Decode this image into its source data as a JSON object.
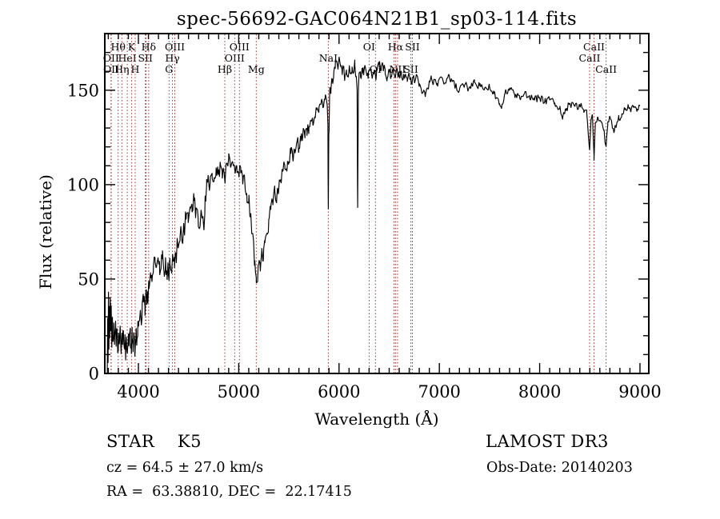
{
  "page": {
    "background": "#ffffff"
  },
  "chart_data": {
    "type": "line",
    "title": "spec-56692-GAC064N21B1_sp03-114.fits",
    "xlabel": "Wavelength (Å)",
    "ylabel": "Flux (relative)",
    "xlim": [
      3665,
      9088
    ],
    "ylim": [
      0,
      180
    ],
    "x_ticks": [
      4000,
      5000,
      6000,
      7000,
      8000,
      9000
    ],
    "x_minor_step": 100,
    "y_ticks": [
      0,
      50,
      100,
      150
    ],
    "y_minor_step": 10,
    "grid": false,
    "legend": "none",
    "colors": {
      "spectrum": "#000000",
      "line_marker": "#9e2f28",
      "text": "#000000",
      "frame": "#000000"
    },
    "spectral_lines": [
      {
        "label": "OII",
        "wavelength": 3727,
        "row": 2
      },
      {
        "label": "OII",
        "wavelength": 3729,
        "row": 3
      },
      {
        "label": "Hθ",
        "wavelength": 3798,
        "row": 1
      },
      {
        "label": "Hη",
        "wavelength": 3835,
        "row": 3
      },
      {
        "label": "HeI",
        "wavelength": 3889,
        "row": 2
      },
      {
        "label": "K",
        "wavelength": 3933,
        "row": 1
      },
      {
        "label": "H",
        "wavelength": 3968,
        "row": 3
      },
      {
        "label": "SII",
        "wavelength": 4069,
        "row": 2
      },
      {
        "label": "",
        "wavelength": 4076,
        "row": 0
      },
      {
        "label": "Hδ",
        "wavelength": 4102,
        "row": 1
      },
      {
        "label": "G",
        "wavelength": 4305,
        "row": 3
      },
      {
        "label": "Hγ",
        "wavelength": 4340,
        "row": 2
      },
      {
        "label": "OIII",
        "wavelength": 4363,
        "row": 1
      },
      {
        "label": "Hβ",
        "wavelength": 4861,
        "row": 3
      },
      {
        "label": "OIII",
        "wavelength": 4959,
        "row": 2
      },
      {
        "label": "OIII",
        "wavelength": 5007,
        "row": 1
      },
      {
        "label": "Mg",
        "wavelength": 5175,
        "row": 3
      },
      {
        "label": "NaI",
        "wavelength": 5893,
        "row": 2
      },
      {
        "label": "OI",
        "wavelength": 6300,
        "row": 1
      },
      {
        "label": "OI",
        "wavelength": 6363,
        "row": 3
      },
      {
        "label": "",
        "wavelength": 6548,
        "row": 0
      },
      {
        "label": "Hα",
        "wavelength": 6563,
        "row": 1
      },
      {
        "label": "NII",
        "wavelength": 6583,
        "row": 3
      },
      {
        "label": "SII",
        "wavelength": 6716,
        "row": 3
      },
      {
        "label": "SII",
        "wavelength": 6731,
        "row": 1
      },
      {
        "label": "CaII",
        "wavelength": 8498,
        "row": 2
      },
      {
        "label": "CaII",
        "wavelength": 8542,
        "row": 1
      },
      {
        "label": "CaII",
        "wavelength": 8662,
        "row": 3
      }
    ],
    "noise_profile": [
      [
        3690,
        9
      ],
      [
        3950,
        7
      ],
      [
        4400,
        6
      ],
      [
        5200,
        5
      ],
      [
        5900,
        4
      ],
      [
        6350,
        3
      ],
      [
        6800,
        2.5
      ],
      [
        7600,
        2
      ],
      [
        9000,
        2
      ]
    ],
    "series": [
      {
        "name": "spectrum",
        "points": [
          [
            3690,
            2
          ],
          [
            3694,
            28
          ],
          [
            3698,
            6
          ],
          [
            3702,
            44
          ],
          [
            3706,
            12
          ],
          [
            3710,
            34
          ],
          [
            3714,
            18
          ],
          [
            3719,
            40
          ],
          [
            3724,
            22
          ],
          [
            3729,
            36
          ],
          [
            3735,
            15
          ],
          [
            3741,
            30
          ],
          [
            3748,
            18
          ],
          [
            3755,
            27
          ],
          [
            3762,
            16
          ],
          [
            3770,
            25
          ],
          [
            3778,
            15
          ],
          [
            3786,
            23
          ],
          [
            3794,
            12
          ],
          [
            3802,
            22
          ],
          [
            3810,
            15
          ],
          [
            3818,
            24
          ],
          [
            3826,
            14
          ],
          [
            3834,
            21
          ],
          [
            3842,
            16
          ],
          [
            3850,
            24
          ],
          [
            3858,
            13
          ],
          [
            3866,
            20
          ],
          [
            3874,
            12
          ],
          [
            3882,
            19
          ],
          [
            3890,
            10
          ],
          [
            3898,
            17
          ],
          [
            3906,
            13
          ],
          [
            3914,
            21
          ],
          [
            3922,
            15
          ],
          [
            3930,
            11
          ],
          [
            3938,
            19
          ],
          [
            3946,
            15
          ],
          [
            3954,
            23
          ],
          [
            3962,
            17
          ],
          [
            3970,
            14
          ],
          [
            3978,
            24
          ],
          [
            3986,
            19
          ],
          [
            3994,
            27
          ],
          [
            4005,
            29
          ],
          [
            4020,
            33
          ],
          [
            4035,
            29
          ],
          [
            4050,
            39
          ],
          [
            4065,
            35
          ],
          [
            4080,
            43
          ],
          [
            4095,
            38
          ],
          [
            4105,
            46
          ],
          [
            4120,
            52
          ],
          [
            4135,
            49
          ],
          [
            4150,
            57
          ],
          [
            4165,
            63
          ],
          [
            4180,
            57
          ],
          [
            4195,
            63
          ],
          [
            4210,
            59
          ],
          [
            4225,
            56
          ],
          [
            4240,
            62
          ],
          [
            4255,
            55
          ],
          [
            4270,
            60
          ],
          [
            4285,
            54
          ],
          [
            4300,
            52
          ],
          [
            4315,
            57
          ],
          [
            4330,
            54
          ],
          [
            4345,
            60
          ],
          [
            4360,
            57
          ],
          [
            4375,
            63
          ],
          [
            4395,
            68
          ],
          [
            4415,
            73
          ],
          [
            4435,
            71
          ],
          [
            4455,
            77
          ],
          [
            4475,
            81
          ],
          [
            4495,
            85
          ],
          [
            4515,
            89
          ],
          [
            4535,
            86
          ],
          [
            4555,
            91
          ],
          [
            4575,
            87
          ],
          [
            4595,
            84
          ],
          [
            4615,
            79
          ],
          [
            4635,
            83
          ],
          [
            4650,
            77
          ],
          [
            4665,
            93
          ],
          [
            4680,
            101
          ],
          [
            4695,
            104
          ],
          [
            4715,
            101
          ],
          [
            4735,
            107
          ],
          [
            4755,
            103
          ],
          [
            4775,
            109
          ],
          [
            4795,
            106
          ],
          [
            4815,
            111
          ],
          [
            4835,
            107
          ],
          [
            4861,
            101
          ],
          [
            4880,
            112
          ],
          [
            4900,
            115
          ],
          [
            4920,
            109
          ],
          [
            4940,
            112
          ],
          [
            4960,
            107
          ],
          [
            4980,
            109
          ],
          [
            5000,
            105
          ],
          [
            5020,
            107
          ],
          [
            5040,
            101
          ],
          [
            5060,
            103
          ],
          [
            5080,
            96
          ],
          [
            5100,
            91
          ],
          [
            5120,
            83
          ],
          [
            5140,
            74
          ],
          [
            5160,
            60
          ],
          [
            5175,
            50
          ],
          [
            5188,
            48
          ],
          [
            5200,
            57
          ],
          [
            5215,
            54
          ],
          [
            5230,
            64
          ],
          [
            5245,
            61
          ],
          [
            5260,
            69
          ],
          [
            5280,
            75
          ],
          [
            5300,
            81
          ],
          [
            5320,
            87
          ],
          [
            5340,
            91
          ],
          [
            5360,
            96
          ],
          [
            5380,
            93
          ],
          [
            5400,
            99
          ],
          [
            5420,
            103
          ],
          [
            5440,
            107
          ],
          [
            5460,
            111
          ],
          [
            5480,
            108
          ],
          [
            5500,
            113
          ],
          [
            5520,
            117
          ],
          [
            5540,
            114
          ],
          [
            5560,
            119
          ],
          [
            5580,
            122
          ],
          [
            5600,
            120
          ],
          [
            5620,
            124
          ],
          [
            5640,
            127
          ],
          [
            5660,
            125
          ],
          [
            5680,
            129
          ],
          [
            5700,
            131
          ],
          [
            5720,
            134
          ],
          [
            5740,
            132
          ],
          [
            5760,
            136
          ],
          [
            5780,
            139
          ],
          [
            5800,
            141
          ],
          [
            5820,
            143
          ],
          [
            5840,
            141
          ],
          [
            5860,
            145
          ],
          [
            5880,
            144
          ],
          [
            5889,
            132
          ],
          [
            5893,
            87
          ],
          [
            5898,
            126
          ],
          [
            5906,
            147
          ],
          [
            5920,
            151
          ],
          [
            5934,
            155
          ],
          [
            5948,
            159
          ],
          [
            5962,
            162
          ],
          [
            5976,
            165
          ],
          [
            5990,
            161
          ],
          [
            6004,
            167
          ],
          [
            6018,
            163
          ],
          [
            6032,
            159
          ],
          [
            6046,
            162
          ],
          [
            6060,
            157
          ],
          [
            6074,
            161
          ],
          [
            6088,
            158
          ],
          [
            6102,
            162
          ],
          [
            6116,
            159
          ],
          [
            6130,
            163
          ],
          [
            6144,
            160
          ],
          [
            6158,
            163
          ],
          [
            6172,
            158
          ],
          [
            6180,
            150
          ],
          [
            6186,
            87
          ],
          [
            6192,
            148
          ],
          [
            6200,
            160
          ],
          [
            6215,
            157
          ],
          [
            6230,
            161
          ],
          [
            6245,
            158
          ],
          [
            6260,
            162
          ],
          [
            6275,
            159
          ],
          [
            6290,
            156
          ],
          [
            6305,
            160
          ],
          [
            6320,
            162
          ],
          [
            6335,
            158
          ],
          [
            6350,
            161
          ],
          [
            6365,
            157
          ],
          [
            6380,
            161
          ],
          [
            6400,
            164
          ],
          [
            6420,
            160
          ],
          [
            6440,
            163
          ],
          [
            6460,
            159
          ],
          [
            6480,
            156
          ],
          [
            6500,
            160
          ],
          [
            6520,
            157
          ],
          [
            6540,
            161
          ],
          [
            6563,
            158
          ],
          [
            6580,
            161
          ],
          [
            6600,
            157
          ],
          [
            6620,
            160
          ],
          [
            6640,
            156
          ],
          [
            6660,
            159
          ],
          [
            6680,
            155
          ],
          [
            6700,
            158
          ],
          [
            6720,
            154
          ],
          [
            6740,
            157
          ],
          [
            6760,
            155
          ],
          [
            6780,
            158
          ],
          [
            6800,
            154
          ],
          [
            6820,
            151
          ],
          [
            6840,
            149
          ],
          [
            6860,
            146
          ],
          [
            6880,
            151
          ],
          [
            6900,
            154
          ],
          [
            6920,
            156
          ],
          [
            6940,
            153
          ],
          [
            6960,
            156
          ],
          [
            6980,
            154
          ],
          [
            7000,
            156
          ],
          [
            7050,
            154
          ],
          [
            7100,
            157
          ],
          [
            7150,
            153
          ],
          [
            7200,
            150
          ],
          [
            7250,
            153
          ],
          [
            7300,
            151
          ],
          [
            7350,
            154
          ],
          [
            7400,
            152
          ],
          [
            7450,
            150
          ],
          [
            7500,
            152
          ],
          [
            7550,
            148
          ],
          [
            7600,
            143
          ],
          [
            7620,
            140
          ],
          [
            7650,
            148
          ],
          [
            7700,
            151
          ],
          [
            7750,
            148
          ],
          [
            7800,
            146
          ],
          [
            7850,
            148
          ],
          [
            7900,
            146
          ],
          [
            7950,
            145
          ],
          [
            8000,
            146
          ],
          [
            8050,
            144
          ],
          [
            8100,
            145
          ],
          [
            8150,
            143
          ],
          [
            8200,
            140
          ],
          [
            8230,
            136
          ],
          [
            8260,
            139
          ],
          [
            8300,
            143
          ],
          [
            8350,
            141
          ],
          [
            8400,
            142
          ],
          [
            8440,
            140
          ],
          [
            8470,
            138
          ],
          [
            8498,
            118
          ],
          [
            8512,
            135
          ],
          [
            8526,
            137
          ],
          [
            8542,
            113
          ],
          [
            8556,
            133
          ],
          [
            8580,
            136
          ],
          [
            8610,
            133
          ],
          [
            8640,
            129
          ],
          [
            8662,
            120
          ],
          [
            8680,
            133
          ],
          [
            8700,
            136
          ],
          [
            8720,
            132
          ],
          [
            8740,
            127
          ],
          [
            8760,
            131
          ],
          [
            8790,
            135
          ],
          [
            8820,
            138
          ],
          [
            8850,
            140
          ],
          [
            8880,
            141
          ],
          [
            8910,
            139
          ],
          [
            8940,
            141
          ],
          [
            8970,
            139
          ],
          [
            9000,
            142
          ]
        ]
      }
    ]
  },
  "annotations": {
    "class_label": "STAR    K5",
    "cz_label": "cz = 64.5 ± 27.0 km/s",
    "radec_label": "RA =  63.38810, DEC =  22.17415",
    "survey_label": "LAMOST DR3",
    "obsdate_label": "Obs-Date: 20140203"
  }
}
